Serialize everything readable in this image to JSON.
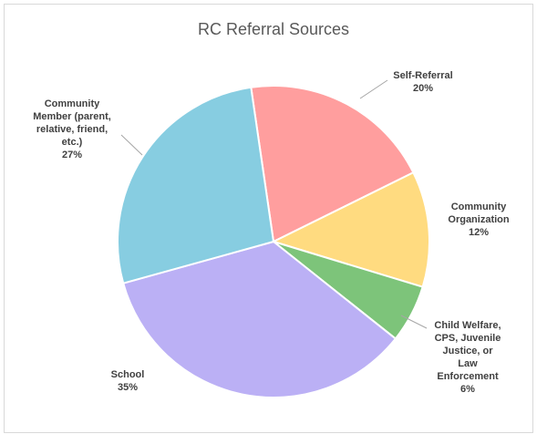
{
  "chart_data": {
    "type": "pie",
    "title": "RC Referral Sources",
    "categories": [
      "Self-Referral",
      "Community\nOrganization",
      "Child Welfare,\nCPS, Juvenile\nJustice, or Law\nEnforcement",
      "School",
      "Community\nMember (parent,\nrelative, friend,\netc.)"
    ],
    "values": [
      20,
      12,
      6,
      35,
      27
    ],
    "value_labels": [
      "20%",
      "12%",
      "6%",
      "35%",
      "27%"
    ],
    "colors": [
      "#ff9e9e",
      "#ffdb80",
      "#7dc47a",
      "#bbb0f5",
      "#87cde1"
    ]
  }
}
